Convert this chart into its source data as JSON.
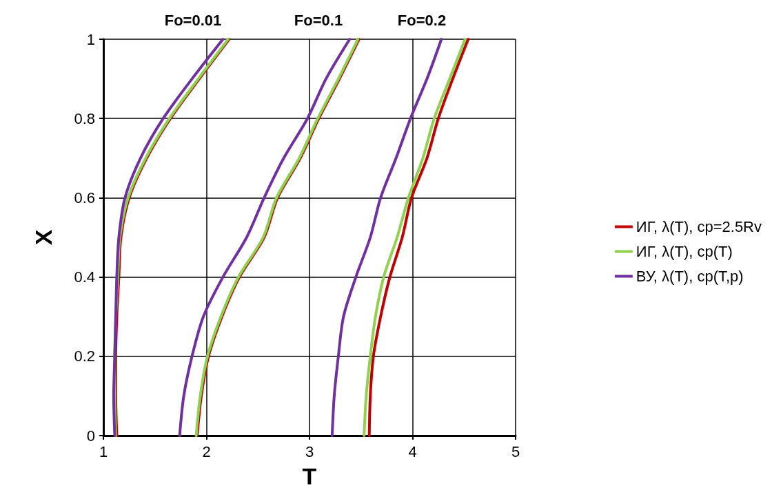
{
  "chart_data": {
    "type": "line",
    "xlabel": "T",
    "ylabel": "X",
    "xlim": [
      1,
      5
    ],
    "xticks": [
      1,
      2,
      3,
      4,
      5
    ],
    "ylim": [
      0,
      1
    ],
    "yticks": [
      0,
      0.2,
      0.4,
      0.6,
      0.8,
      1
    ],
    "grid": true,
    "legend": "right",
    "marker": "none",
    "line_style": "solid",
    "annotations": [
      "Fo=0.01",
      "Fo=0.1",
      "Fo=0.2"
    ],
    "series": [
      {
        "name": "ИГ, λ(T), cp=2.5Rv",
        "color": "#c00000",
        "x": [
          1.13,
          1.12,
          1.12,
          1.13,
          1.15,
          1.17,
          1.25,
          1.42,
          1.65,
          1.93,
          2.22
        ],
        "values": [
          0,
          0.1,
          0.2,
          0.3,
          0.4,
          0.5,
          0.6,
          0.7,
          0.8,
          0.9,
          1
        ]
      },
      {
        "color": "#c00000",
        "x": [
          1.91,
          1.95,
          2.02,
          2.15,
          2.32,
          2.56,
          2.69,
          2.91,
          3.09,
          3.29,
          3.48
        ],
        "values": [
          0,
          0.1,
          0.2,
          0.3,
          0.4,
          0.5,
          0.6,
          0.7,
          0.8,
          0.9,
          1
        ]
      },
      {
        "color": "#c00000",
        "x": [
          3.58,
          3.59,
          3.62,
          3.69,
          3.78,
          3.9,
          3.99,
          4.14,
          4.25,
          4.39,
          4.54
        ],
        "values": [
          0,
          0.1,
          0.2,
          0.3,
          0.4,
          0.5,
          0.6,
          0.7,
          0.8,
          0.9,
          1
        ]
      },
      {
        "name": "ИГ, λ(T), cp(T)",
        "color": "#92d050",
        "x": [
          1.12,
          1.11,
          1.11,
          1.12,
          1.14,
          1.16,
          1.24,
          1.41,
          1.64,
          1.92,
          2.21
        ],
        "values": [
          0,
          0.1,
          0.2,
          0.3,
          0.4,
          0.5,
          0.6,
          0.7,
          0.8,
          0.9,
          1
        ]
      },
      {
        "color": "#92d050",
        "x": [
          1.9,
          1.94,
          2.01,
          2.14,
          2.31,
          2.55,
          2.68,
          2.9,
          3.08,
          3.28,
          3.47
        ],
        "values": [
          0,
          0.1,
          0.2,
          0.3,
          0.4,
          0.5,
          0.6,
          0.7,
          0.8,
          0.9,
          1
        ]
      },
      {
        "color": "#92d050",
        "x": [
          3.53,
          3.55,
          3.59,
          3.64,
          3.72,
          3.85,
          3.96,
          4.1,
          4.21,
          4.36,
          4.51
        ],
        "values": [
          0,
          0.1,
          0.2,
          0.3,
          0.4,
          0.5,
          0.6,
          0.7,
          0.8,
          0.9,
          1
        ]
      },
      {
        "name": "ВУ, λ(T), cp(T,p)",
        "color": "#7030a0",
        "x": [
          1.11,
          1.1,
          1.11,
          1.12,
          1.13,
          1.15,
          1.21,
          1.36,
          1.58,
          1.86,
          2.16
        ],
        "values": [
          0,
          0.1,
          0.2,
          0.3,
          0.4,
          0.5,
          0.6,
          0.7,
          0.8,
          0.9,
          1
        ]
      },
      {
        "color": "#7030a0",
        "x": [
          1.74,
          1.78,
          1.86,
          1.97,
          2.16,
          2.39,
          2.56,
          2.75,
          2.98,
          3.16,
          3.39
        ],
        "values": [
          0,
          0.1,
          0.2,
          0.3,
          0.4,
          0.5,
          0.6,
          0.7,
          0.8,
          0.9,
          1
        ]
      },
      {
        "color": "#7030a0",
        "x": [
          3.22,
          3.24,
          3.28,
          3.33,
          3.45,
          3.59,
          3.69,
          3.84,
          3.98,
          4.14,
          4.28
        ],
        "values": [
          0,
          0.1,
          0.2,
          0.3,
          0.4,
          0.5,
          0.6,
          0.7,
          0.8,
          0.9,
          1
        ]
      }
    ]
  }
}
